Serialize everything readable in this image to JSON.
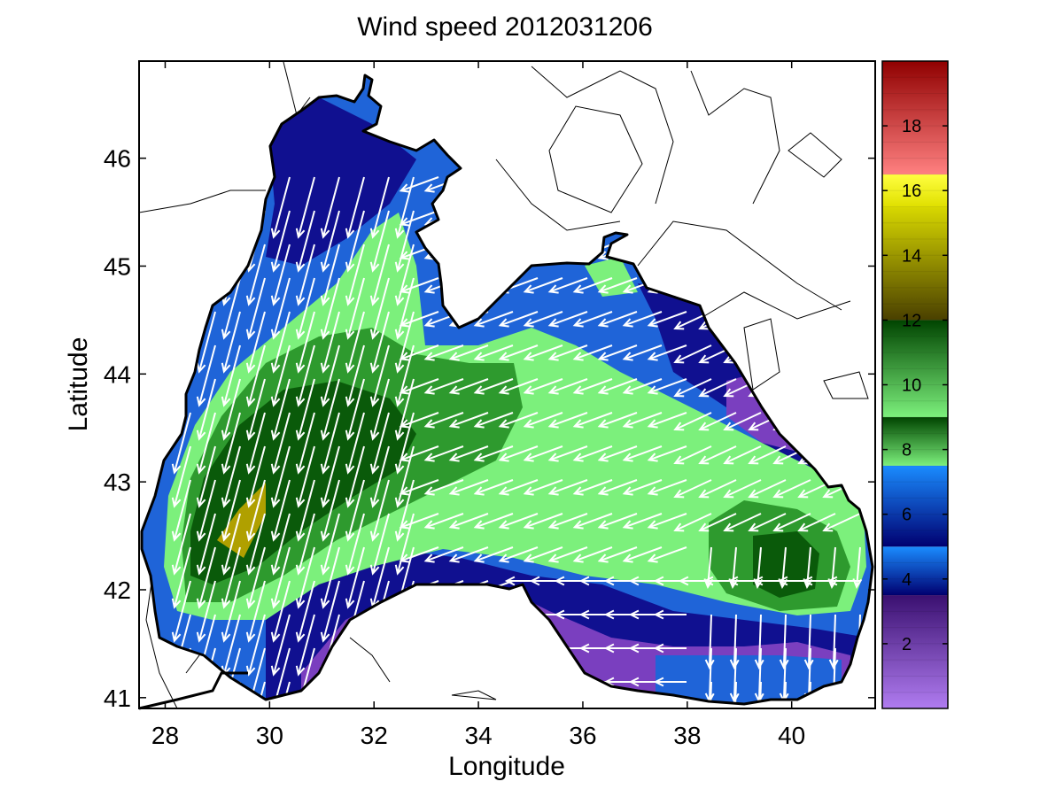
{
  "chart_data": {
    "type": "heatmap",
    "title": "Wind speed 2012031206",
    "xlabel": "Longitude",
    "ylabel": "Latitude",
    "xlim": [
      27.5,
      41.6
    ],
    "ylim": [
      40.9,
      46.9
    ],
    "x_ticks": [
      28,
      30,
      32,
      34,
      36,
      38,
      40
    ],
    "y_ticks": [
      41,
      42,
      43,
      44,
      45,
      46
    ],
    "colorbar": {
      "range": [
        0,
        20
      ],
      "ticks": [
        2,
        4,
        6,
        8,
        10,
        12,
        14,
        16,
        18
      ],
      "bands": [
        {
          "from": 0,
          "to": 3.5,
          "color": "#7a3fbf"
        },
        {
          "from": 3.5,
          "to": 5.0,
          "color": "#101090"
        },
        {
          "from": 5.0,
          "to": 7.5,
          "color": "#1f64d8"
        },
        {
          "from": 7.5,
          "to": 9.0,
          "color": "#7cf07c"
        },
        {
          "from": 9.0,
          "to": 12.0,
          "color": "#1a8a1a"
        },
        {
          "from": 12.0,
          "to": 15.5,
          "color": "#807000"
        },
        {
          "from": 15.5,
          "to": 16.5,
          "color": "#ffff00"
        },
        {
          "from": 16.5,
          "to": 20.0,
          "color": "#c02020"
        }
      ]
    },
    "wind_field": {
      "dominant_direction": "southwest in the northwest shelf, westward across the central basin, southward in the east",
      "max_speed_approx": 13,
      "max_location": [
        29.5,
        42.8
      ]
    }
  }
}
